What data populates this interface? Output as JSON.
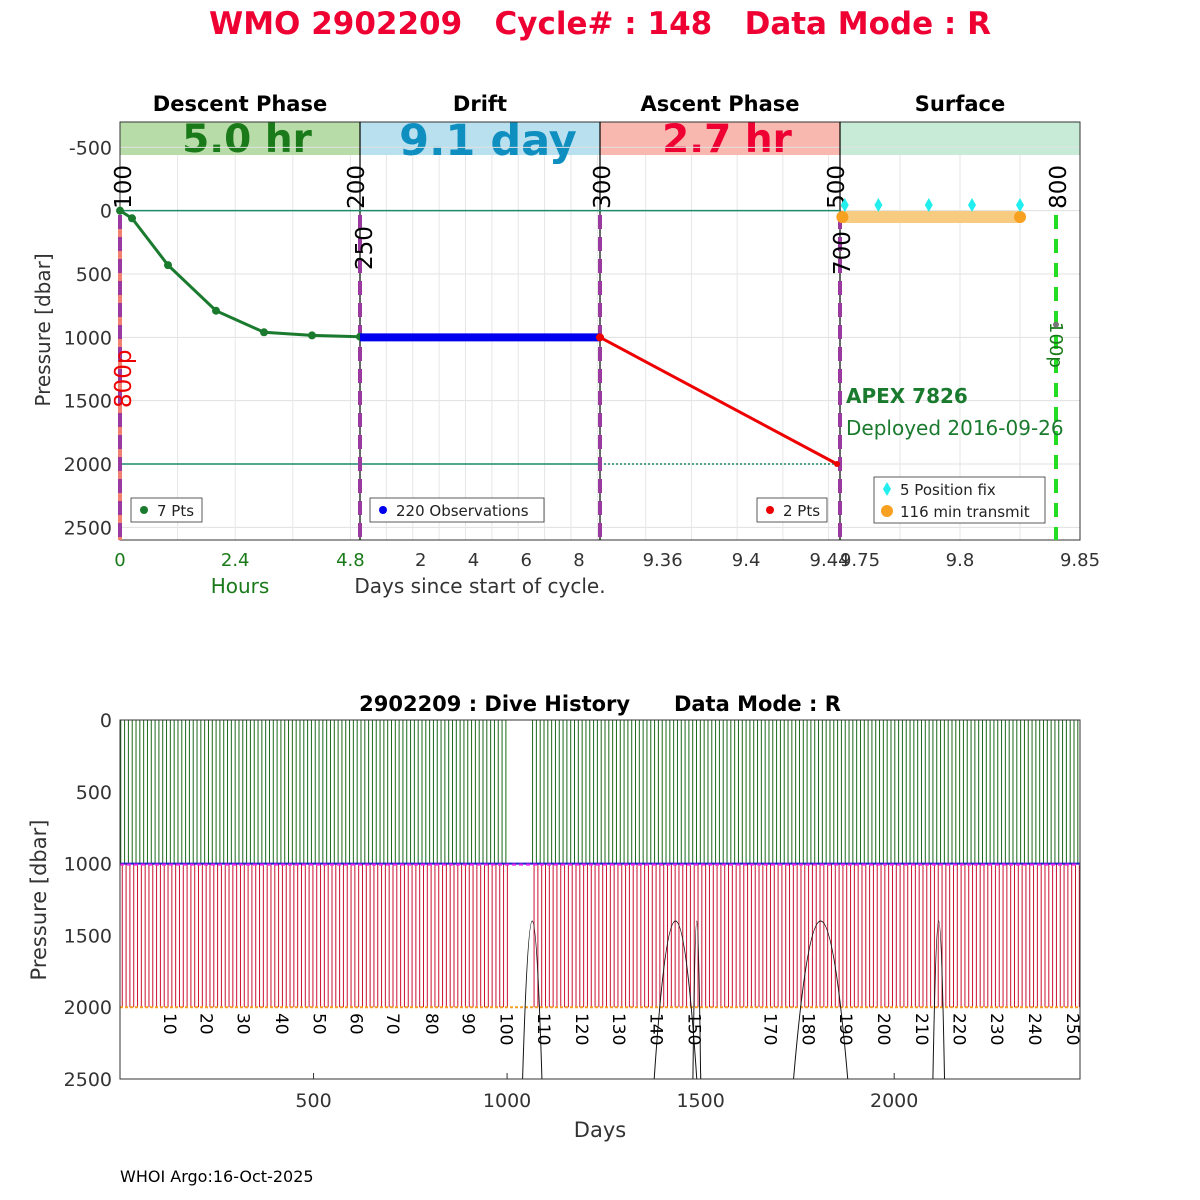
{
  "header": {
    "title": "WMO 2902209   Cycle# : 148   Data Mode : R",
    "title_color": "#ee0033"
  },
  "chart_data": [
    {
      "type": "line",
      "name": "cycle-profile",
      "ylabel": "Pressure [dbar]",
      "ylim": [
        2600,
        -700
      ],
      "yticks": [
        "-500",
        "0",
        "500",
        "1000",
        "1500",
        "2000",
        "2500"
      ],
      "phases": [
        {
          "name": "Descent Phase",
          "duration": "5.0 hr",
          "color": "#b8dca8",
          "text_color": "#1a7a1a"
        },
        {
          "name": "Drift",
          "duration": "9.1 day",
          "color": "#b8e0ee",
          "text_color": "#0f8fc0"
        },
        {
          "name": "Ascent Phase",
          "duration": "2.7 hr",
          "color": "#f8b8b0",
          "text_color": "#ee0033"
        },
        {
          "name": "Surface",
          "duration": "",
          "color": "#c8ebd8",
          "text_color": "#1a7a1a"
        }
      ],
      "xticks": {
        "descent": [
          "0",
          "2.4",
          "4.8"
        ],
        "drift": [
          "2",
          "4",
          "6",
          "8"
        ],
        "ascent": [
          "9.36",
          "9.4",
          "9.44"
        ],
        "surface": [
          "9.75",
          "9.8",
          "9.85"
        ]
      },
      "xlabel_hours": "Hours",
      "xlabel_days": "Days since start of cycle.",
      "descent_hours": [
        0,
        0.25,
        1.0,
        2.0,
        3.0,
        4.0,
        5.0
      ],
      "descent_pressure": [
        0,
        60,
        430,
        790,
        960,
        985,
        995
      ],
      "drift_pressure": 1000,
      "ascent_pressure": [
        1000,
        2000
      ],
      "surface_fix_days": [
        9.752,
        9.766,
        9.787,
        9.805,
        9.825
      ],
      "surface_fix_pressure": 45,
      "transmit_days": [
        9.751,
        9.825
      ],
      "transmit_pressure": 50,
      "reference_lines": [
        0,
        2000
      ],
      "markers": [
        "100",
        "200",
        "250",
        "300",
        "500",
        "700",
        "800",
        "800p",
        "100p"
      ],
      "legends": {
        "descent": "7 Pts",
        "drift": "220 Observations",
        "ascent": "2 Pts",
        "surface_fix": "5 Position fix",
        "surface_tx": "116 min transmit"
      },
      "float_model": "APEX 7826",
      "deployed": "Deployed 2016-09-26",
      "colors": {
        "descent": "#1a7a2e",
        "drift": "#0000ee",
        "ascent": "#ee0000",
        "fix": "#22eeee",
        "transmit": "#f8a020",
        "marker": "#9a3aa0",
        "line800": "#22dd22",
        "ref": "#1a8a6a"
      }
    },
    {
      "type": "bar",
      "name": "dive-history",
      "title": "2902209 : Dive History      Data Mode : R",
      "xlabel": "Days",
      "ylabel": "Pressure [dbar]",
      "xlim": [
        0,
        2480
      ],
      "ylim": [
        0,
        2500
      ],
      "xticks": [
        "500",
        "1000",
        "1500",
        "2000"
      ],
      "yticks": [
        "0",
        "500",
        "1000",
        "1500",
        "2000",
        "2500"
      ],
      "cycle_labels": [
        "10",
        "20",
        "30",
        "40",
        "50",
        "60",
        "70",
        "80",
        "90",
        "100",
        "110",
        "120",
        "130",
        "140",
        "150",
        "170",
        "180",
        "190",
        "200",
        "210",
        "220",
        "230",
        "240",
        "250"
      ],
      "cycle_label_days": [
        95,
        190,
        285,
        385,
        482,
        577,
        672,
        772,
        867,
        965,
        1062,
        1160,
        1255,
        1352,
        1450,
        1647,
        1745,
        1842,
        1940,
        2038,
        2135,
        2232,
        2330,
        2428
      ],
      "drift_level": 1000,
      "profile_level": 2000,
      "cycle_period_days": 9.85,
      "gap_days": [
        1000,
        1060
      ],
      "colors": {
        "surface": "#1a6a1a",
        "profile": "#cc1133",
        "drift": "#ee22ee",
        "park": "#2222cc",
        "max": "#f8a020"
      }
    }
  ],
  "footer": {
    "credit": "WHOI Argo:16-Oct-2025"
  }
}
